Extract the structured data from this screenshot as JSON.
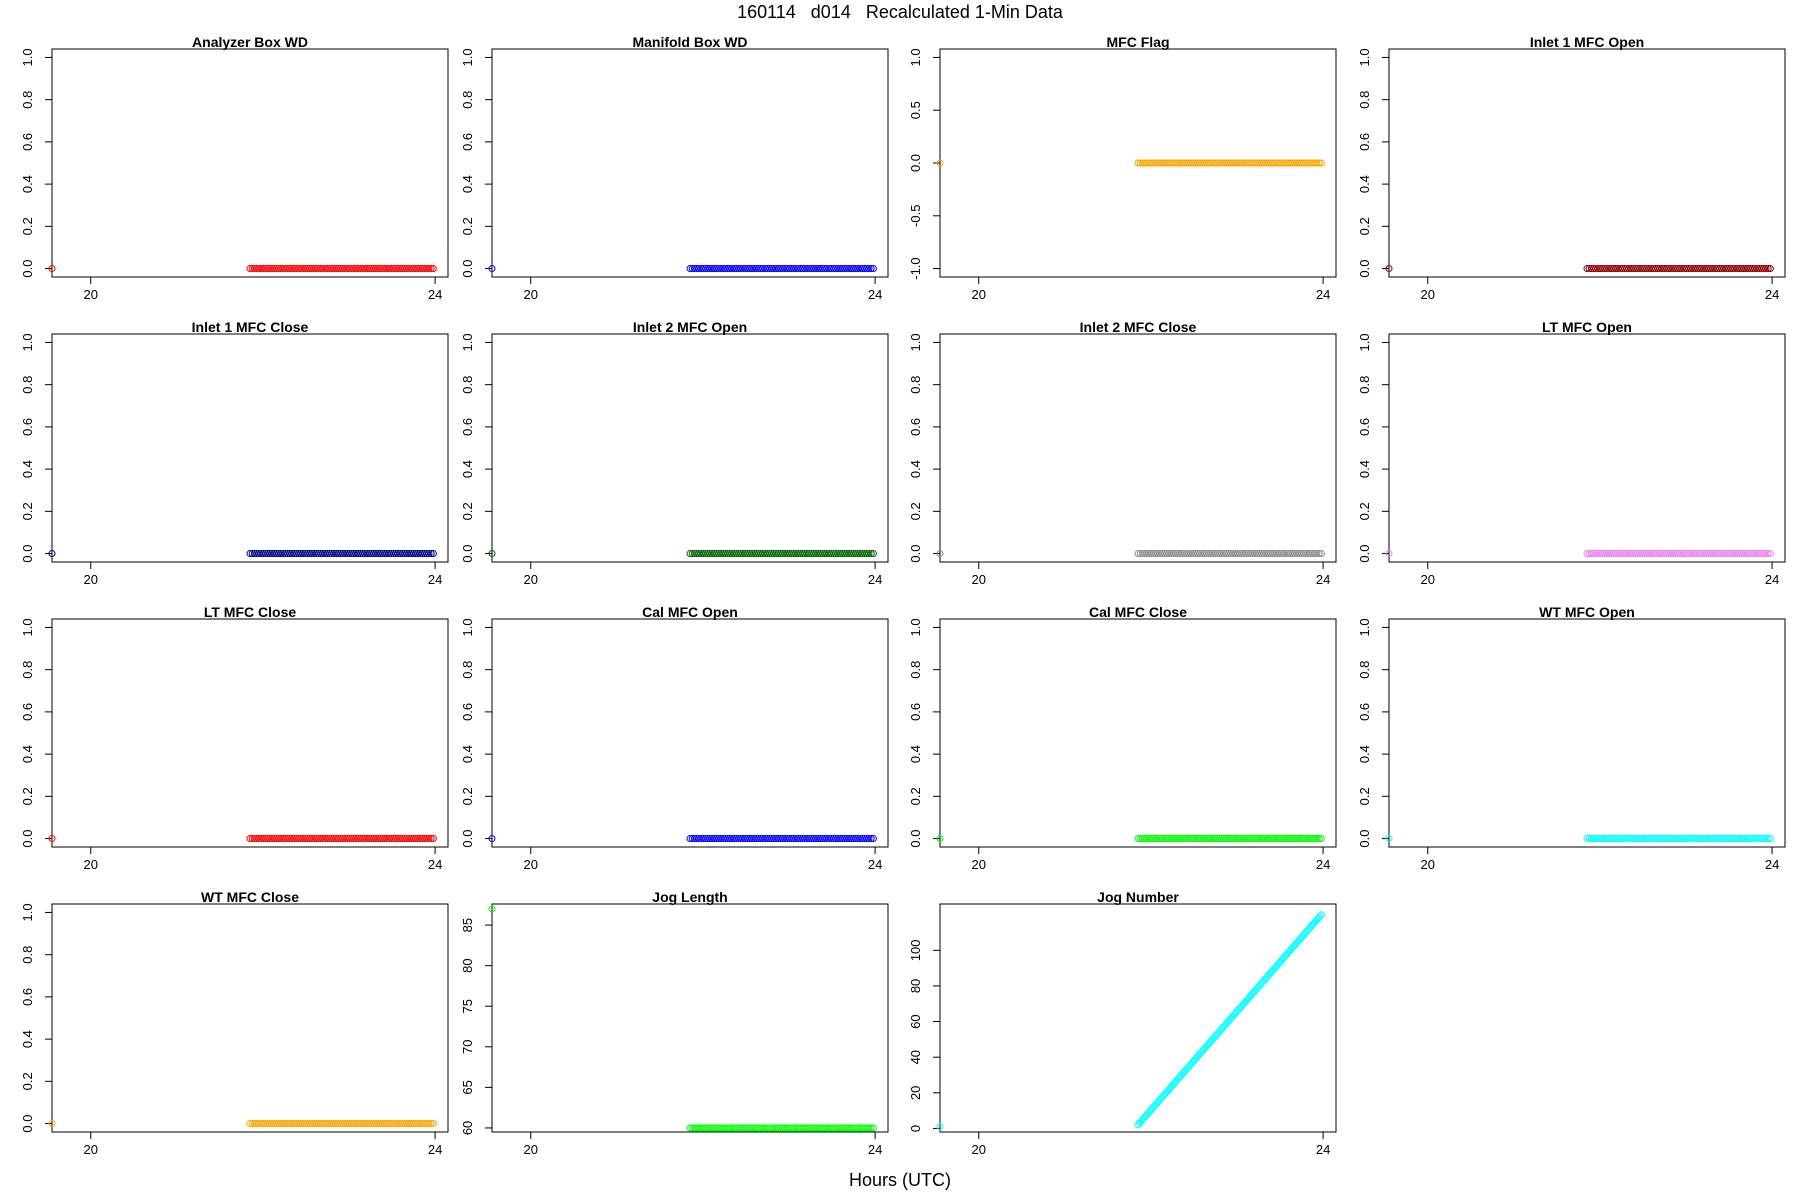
{
  "figure": {
    "title": "160114   d014   Recalculated 1-Min Data",
    "xlabel": "Hours (UTC)"
  },
  "chart_data": [
    {
      "type": "scatter",
      "title": "Analyzer Box WD",
      "color": "#ff0000",
      "xlim": [
        19.55,
        24.15
      ],
      "ylim": [
        -0.04,
        1.04
      ],
      "yticks": [
        0.0,
        0.2,
        0.4,
        0.6,
        0.8,
        1.0
      ],
      "xticks": [
        20,
        24
      ],
      "points": [
        [
          19.55,
          0
        ]
      ],
      "run": {
        "x_start": 21.85,
        "x_end": 23.98,
        "y": 0
      }
    },
    {
      "type": "scatter",
      "title": "Manifold Box WD",
      "color": "#0000ff",
      "xlim": [
        19.55,
        24.15
      ],
      "ylim": [
        -0.04,
        1.04
      ],
      "yticks": [
        0.0,
        0.2,
        0.4,
        0.6,
        0.8,
        1.0
      ],
      "xticks": [
        20,
        24
      ],
      "points": [
        [
          19.55,
          0
        ]
      ],
      "run": {
        "x_start": 21.85,
        "x_end": 23.98,
        "y": 0
      }
    },
    {
      "type": "scatter",
      "title": "MFC Flag",
      "color": "#ffa500",
      "xlim": [
        19.55,
        24.15
      ],
      "ylim": [
        -1.08,
        1.08
      ],
      "yticks": [
        -1.0,
        -0.5,
        0.0,
        0.5,
        1.0
      ],
      "xticks": [
        20,
        24
      ],
      "points": [
        [
          19.55,
          0
        ]
      ],
      "run": {
        "x_start": 21.85,
        "x_end": 23.98,
        "y": 0
      }
    },
    {
      "type": "scatter",
      "title": "Inlet 1 MFC Open",
      "color": "#8b0000",
      "xlim": [
        19.55,
        24.15
      ],
      "ylim": [
        -0.04,
        1.04
      ],
      "yticks": [
        0.0,
        0.2,
        0.4,
        0.6,
        0.8,
        1.0
      ],
      "xticks": [
        20,
        24
      ],
      "points": [
        [
          19.55,
          0
        ]
      ],
      "run": {
        "x_start": 21.85,
        "x_end": 23.98,
        "y": 0
      }
    },
    {
      "type": "scatter",
      "title": "Inlet 1 MFC Close",
      "color": "#00008b",
      "xlim": [
        19.55,
        24.15
      ],
      "ylim": [
        -0.04,
        1.04
      ],
      "yticks": [
        0.0,
        0.2,
        0.4,
        0.6,
        0.8,
        1.0
      ],
      "xticks": [
        20,
        24
      ],
      "points": [
        [
          19.55,
          0
        ]
      ],
      "run": {
        "x_start": 21.85,
        "x_end": 23.98,
        "y": 0
      }
    },
    {
      "type": "scatter",
      "title": "Inlet 2 MFC Open",
      "color": "#006400",
      "xlim": [
        19.55,
        24.15
      ],
      "ylim": [
        -0.04,
        1.04
      ],
      "yticks": [
        0.0,
        0.2,
        0.4,
        0.6,
        0.8,
        1.0
      ],
      "xticks": [
        20,
        24
      ],
      "points": [
        [
          19.55,
          0
        ]
      ],
      "run": {
        "x_start": 21.85,
        "x_end": 23.98,
        "y": 0
      }
    },
    {
      "type": "scatter",
      "title": "Inlet 2 MFC Close",
      "color": "#8c8c8c",
      "xlim": [
        19.55,
        24.15
      ],
      "ylim": [
        -0.04,
        1.04
      ],
      "yticks": [
        0.0,
        0.2,
        0.4,
        0.6,
        0.8,
        1.0
      ],
      "xticks": [
        20,
        24
      ],
      "points": [
        [
          19.55,
          0
        ]
      ],
      "run": {
        "x_start": 21.85,
        "x_end": 23.98,
        "y": 0
      }
    },
    {
      "type": "scatter",
      "title": "LT MFC Open",
      "color": "#ee82ee",
      "xlim": [
        19.55,
        24.15
      ],
      "ylim": [
        -0.04,
        1.04
      ],
      "yticks": [
        0.0,
        0.2,
        0.4,
        0.6,
        0.8,
        1.0
      ],
      "xticks": [
        20,
        24
      ],
      "points": [
        [
          19.55,
          0
        ]
      ],
      "run": {
        "x_start": 21.85,
        "x_end": 23.98,
        "y": 0
      }
    },
    {
      "type": "scatter",
      "title": "LT MFC Close",
      "color": "#ff0000",
      "xlim": [
        19.55,
        24.15
      ],
      "ylim": [
        -0.04,
        1.04
      ],
      "yticks": [
        0.0,
        0.2,
        0.4,
        0.6,
        0.8,
        1.0
      ],
      "xticks": [
        20,
        24
      ],
      "points": [
        [
          19.55,
          0
        ]
      ],
      "run": {
        "x_start": 21.85,
        "x_end": 23.98,
        "y": 0
      }
    },
    {
      "type": "scatter",
      "title": "Cal MFC Open",
      "color": "#0000ff",
      "xlim": [
        19.55,
        24.15
      ],
      "ylim": [
        -0.04,
        1.04
      ],
      "yticks": [
        0.0,
        0.2,
        0.4,
        0.6,
        0.8,
        1.0
      ],
      "xticks": [
        20,
        24
      ],
      "points": [
        [
          19.55,
          0
        ]
      ],
      "run": {
        "x_start": 21.85,
        "x_end": 23.98,
        "y": 0
      }
    },
    {
      "type": "scatter",
      "title": "Cal MFC Close",
      "color": "#00ff00",
      "xlim": [
        19.55,
        24.15
      ],
      "ylim": [
        -0.04,
        1.04
      ],
      "yticks": [
        0.0,
        0.2,
        0.4,
        0.6,
        0.8,
        1.0
      ],
      "xticks": [
        20,
        24
      ],
      "points": [
        [
          19.55,
          0
        ]
      ],
      "run": {
        "x_start": 21.85,
        "x_end": 23.98,
        "y": 0
      }
    },
    {
      "type": "scatter",
      "title": "WT MFC Open",
      "color": "#00ffff",
      "xlim": [
        19.55,
        24.15
      ],
      "ylim": [
        -0.04,
        1.04
      ],
      "yticks": [
        0.0,
        0.2,
        0.4,
        0.6,
        0.8,
        1.0
      ],
      "xticks": [
        20,
        24
      ],
      "points": [
        [
          19.55,
          0
        ]
      ],
      "run": {
        "x_start": 21.85,
        "x_end": 23.98,
        "y": 0
      }
    },
    {
      "type": "scatter",
      "title": "WT MFC Close",
      "color": "#ffa500",
      "xlim": [
        19.55,
        24.15
      ],
      "ylim": [
        -0.04,
        1.04
      ],
      "yticks": [
        0.0,
        0.2,
        0.4,
        0.6,
        0.8,
        1.0
      ],
      "xticks": [
        20,
        24
      ],
      "points": [
        [
          19.55,
          0
        ]
      ],
      "run": {
        "x_start": 21.85,
        "x_end": 23.98,
        "y": 0
      }
    },
    {
      "type": "scatter",
      "title": "Jog Length",
      "color": "#00ff00",
      "xlim": [
        19.55,
        24.15
      ],
      "ylim": [
        59.5,
        87.6
      ],
      "yticks": [
        60,
        65,
        70,
        75,
        80,
        85
      ],
      "xticks": [
        20,
        24
      ],
      "points": [
        [
          19.55,
          87
        ]
      ],
      "run": {
        "x_start": 21.85,
        "x_end": 23.98,
        "y": 60
      }
    },
    {
      "type": "scatter",
      "title": "Jog Number",
      "color": "#00ffff",
      "xlim": [
        19.55,
        24.15
      ],
      "ylim": [
        -2,
        126
      ],
      "yticks": [
        0,
        20,
        40,
        60,
        80,
        100
      ],
      "xticks": [
        20,
        24
      ],
      "points": [
        [
          19.55,
          1
        ]
      ],
      "run": {
        "x_start": 21.85,
        "x_end": 23.98,
        "y_start": 2,
        "y_end": 120
      }
    }
  ]
}
